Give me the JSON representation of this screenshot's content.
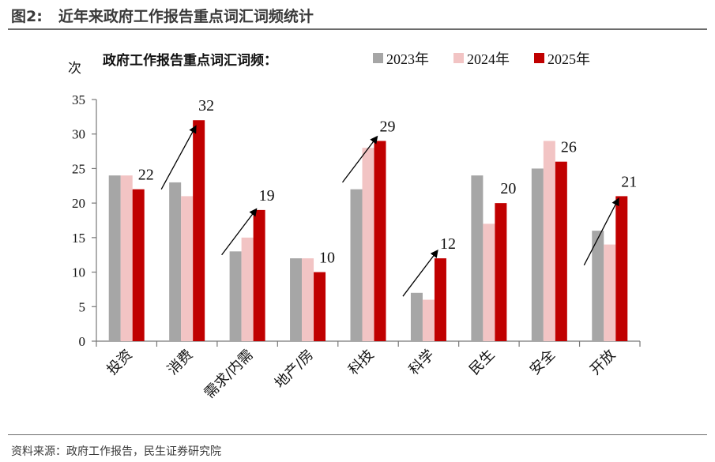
{
  "figure": {
    "label": "图2:",
    "title": "近年来政府工作报告重点词汇词频统计",
    "source": "资料来源：政府工作报告，民生证券研究院"
  },
  "colors": {
    "2023": "#a6a6a6",
    "2024": "#f2c4c4",
    "2025": "#c00000",
    "rule": "#6b6b6b"
  },
  "chart_data": {
    "type": "bar",
    "title": "政府工作报告重点词汇词频：",
    "ylabel": "次",
    "xlabel": "",
    "ylim": [
      0,
      35
    ],
    "yticks": [
      0,
      5,
      10,
      15,
      20,
      25,
      30,
      35
    ],
    "grid": false,
    "legend_position": "top",
    "categories": [
      "投资",
      "消费",
      "需求/内需",
      "地产/房",
      "科技",
      "科学",
      "民生",
      "安全",
      "开放"
    ],
    "series": [
      {
        "name": "2023年",
        "values": [
          24,
          23,
          13,
          12,
          22,
          7,
          24,
          25,
          16
        ]
      },
      {
        "name": "2024年",
        "values": [
          24,
          21,
          15,
          12,
          28,
          6,
          17,
          29,
          14
        ]
      },
      {
        "name": "2025年",
        "values": [
          22,
          32,
          19,
          10,
          29,
          12,
          20,
          26,
          21
        ]
      }
    ],
    "data_labels": [
      "22",
      "32",
      "19",
      "10",
      "29",
      "12",
      "20",
      "26",
      "21"
    ],
    "arrows": [
      {
        "category": "消费",
        "from": 22,
        "to": 31
      },
      {
        "category": "需求/内需",
        "from": 12.5,
        "to": 19
      },
      {
        "category": "科技",
        "from": 23,
        "to": 29.5
      },
      {
        "category": "科学",
        "from": 6.5,
        "to": 13
      },
      {
        "category": "开放",
        "from": 11,
        "to": 20.5
      }
    ]
  }
}
